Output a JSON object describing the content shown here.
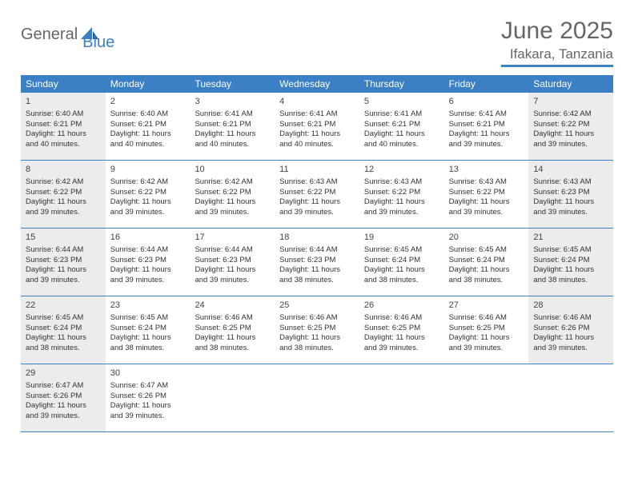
{
  "logo": {
    "text1": "General",
    "text2": "Blue"
  },
  "title": "June 2025",
  "location": "Ifakara, Tanzania",
  "colors": {
    "accent": "#3b7fc4",
    "text_gray": "#666666",
    "body_text": "#333333",
    "shaded_bg": "#ececec",
    "white": "#ffffff"
  },
  "weekdays": [
    "Sunday",
    "Monday",
    "Tuesday",
    "Wednesday",
    "Thursday",
    "Friday",
    "Saturday"
  ],
  "weeks": [
    [
      {
        "n": "1",
        "shaded": true,
        "sr": "6:40 AM",
        "ss": "6:21 PM",
        "dl": "11 hours and 40 minutes."
      },
      {
        "n": "2",
        "shaded": false,
        "sr": "6:40 AM",
        "ss": "6:21 PM",
        "dl": "11 hours and 40 minutes."
      },
      {
        "n": "3",
        "shaded": false,
        "sr": "6:41 AM",
        "ss": "6:21 PM",
        "dl": "11 hours and 40 minutes."
      },
      {
        "n": "4",
        "shaded": false,
        "sr": "6:41 AM",
        "ss": "6:21 PM",
        "dl": "11 hours and 40 minutes."
      },
      {
        "n": "5",
        "shaded": false,
        "sr": "6:41 AM",
        "ss": "6:21 PM",
        "dl": "11 hours and 40 minutes."
      },
      {
        "n": "6",
        "shaded": false,
        "sr": "6:41 AM",
        "ss": "6:21 PM",
        "dl": "11 hours and 39 minutes."
      },
      {
        "n": "7",
        "shaded": true,
        "sr": "6:42 AM",
        "ss": "6:22 PM",
        "dl": "11 hours and 39 minutes."
      }
    ],
    [
      {
        "n": "8",
        "shaded": true,
        "sr": "6:42 AM",
        "ss": "6:22 PM",
        "dl": "11 hours and 39 minutes."
      },
      {
        "n": "9",
        "shaded": false,
        "sr": "6:42 AM",
        "ss": "6:22 PM",
        "dl": "11 hours and 39 minutes."
      },
      {
        "n": "10",
        "shaded": false,
        "sr": "6:42 AM",
        "ss": "6:22 PM",
        "dl": "11 hours and 39 minutes."
      },
      {
        "n": "11",
        "shaded": false,
        "sr": "6:43 AM",
        "ss": "6:22 PM",
        "dl": "11 hours and 39 minutes."
      },
      {
        "n": "12",
        "shaded": false,
        "sr": "6:43 AM",
        "ss": "6:22 PM",
        "dl": "11 hours and 39 minutes."
      },
      {
        "n": "13",
        "shaded": false,
        "sr": "6:43 AM",
        "ss": "6:22 PM",
        "dl": "11 hours and 39 minutes."
      },
      {
        "n": "14",
        "shaded": true,
        "sr": "6:43 AM",
        "ss": "6:23 PM",
        "dl": "11 hours and 39 minutes."
      }
    ],
    [
      {
        "n": "15",
        "shaded": true,
        "sr": "6:44 AM",
        "ss": "6:23 PM",
        "dl": "11 hours and 39 minutes."
      },
      {
        "n": "16",
        "shaded": false,
        "sr": "6:44 AM",
        "ss": "6:23 PM",
        "dl": "11 hours and 39 minutes."
      },
      {
        "n": "17",
        "shaded": false,
        "sr": "6:44 AM",
        "ss": "6:23 PM",
        "dl": "11 hours and 39 minutes."
      },
      {
        "n": "18",
        "shaded": false,
        "sr": "6:44 AM",
        "ss": "6:23 PM",
        "dl": "11 hours and 38 minutes."
      },
      {
        "n": "19",
        "shaded": false,
        "sr": "6:45 AM",
        "ss": "6:24 PM",
        "dl": "11 hours and 38 minutes."
      },
      {
        "n": "20",
        "shaded": false,
        "sr": "6:45 AM",
        "ss": "6:24 PM",
        "dl": "11 hours and 38 minutes."
      },
      {
        "n": "21",
        "shaded": true,
        "sr": "6:45 AM",
        "ss": "6:24 PM",
        "dl": "11 hours and 38 minutes."
      }
    ],
    [
      {
        "n": "22",
        "shaded": true,
        "sr": "6:45 AM",
        "ss": "6:24 PM",
        "dl": "11 hours and 38 minutes."
      },
      {
        "n": "23",
        "shaded": false,
        "sr": "6:45 AM",
        "ss": "6:24 PM",
        "dl": "11 hours and 38 minutes."
      },
      {
        "n": "24",
        "shaded": false,
        "sr": "6:46 AM",
        "ss": "6:25 PM",
        "dl": "11 hours and 38 minutes."
      },
      {
        "n": "25",
        "shaded": false,
        "sr": "6:46 AM",
        "ss": "6:25 PM",
        "dl": "11 hours and 38 minutes."
      },
      {
        "n": "26",
        "shaded": false,
        "sr": "6:46 AM",
        "ss": "6:25 PM",
        "dl": "11 hours and 39 minutes."
      },
      {
        "n": "27",
        "shaded": false,
        "sr": "6:46 AM",
        "ss": "6:25 PM",
        "dl": "11 hours and 39 minutes."
      },
      {
        "n": "28",
        "shaded": true,
        "sr": "6:46 AM",
        "ss": "6:26 PM",
        "dl": "11 hours and 39 minutes."
      }
    ],
    [
      {
        "n": "29",
        "shaded": true,
        "sr": "6:47 AM",
        "ss": "6:26 PM",
        "dl": "11 hours and 39 minutes."
      },
      {
        "n": "30",
        "shaded": false,
        "sr": "6:47 AM",
        "ss": "6:26 PM",
        "dl": "11 hours and 39 minutes."
      },
      null,
      null,
      null,
      null,
      null
    ]
  ],
  "labels": {
    "sunrise": "Sunrise: ",
    "sunset": "Sunset: ",
    "daylight": "Daylight: "
  }
}
